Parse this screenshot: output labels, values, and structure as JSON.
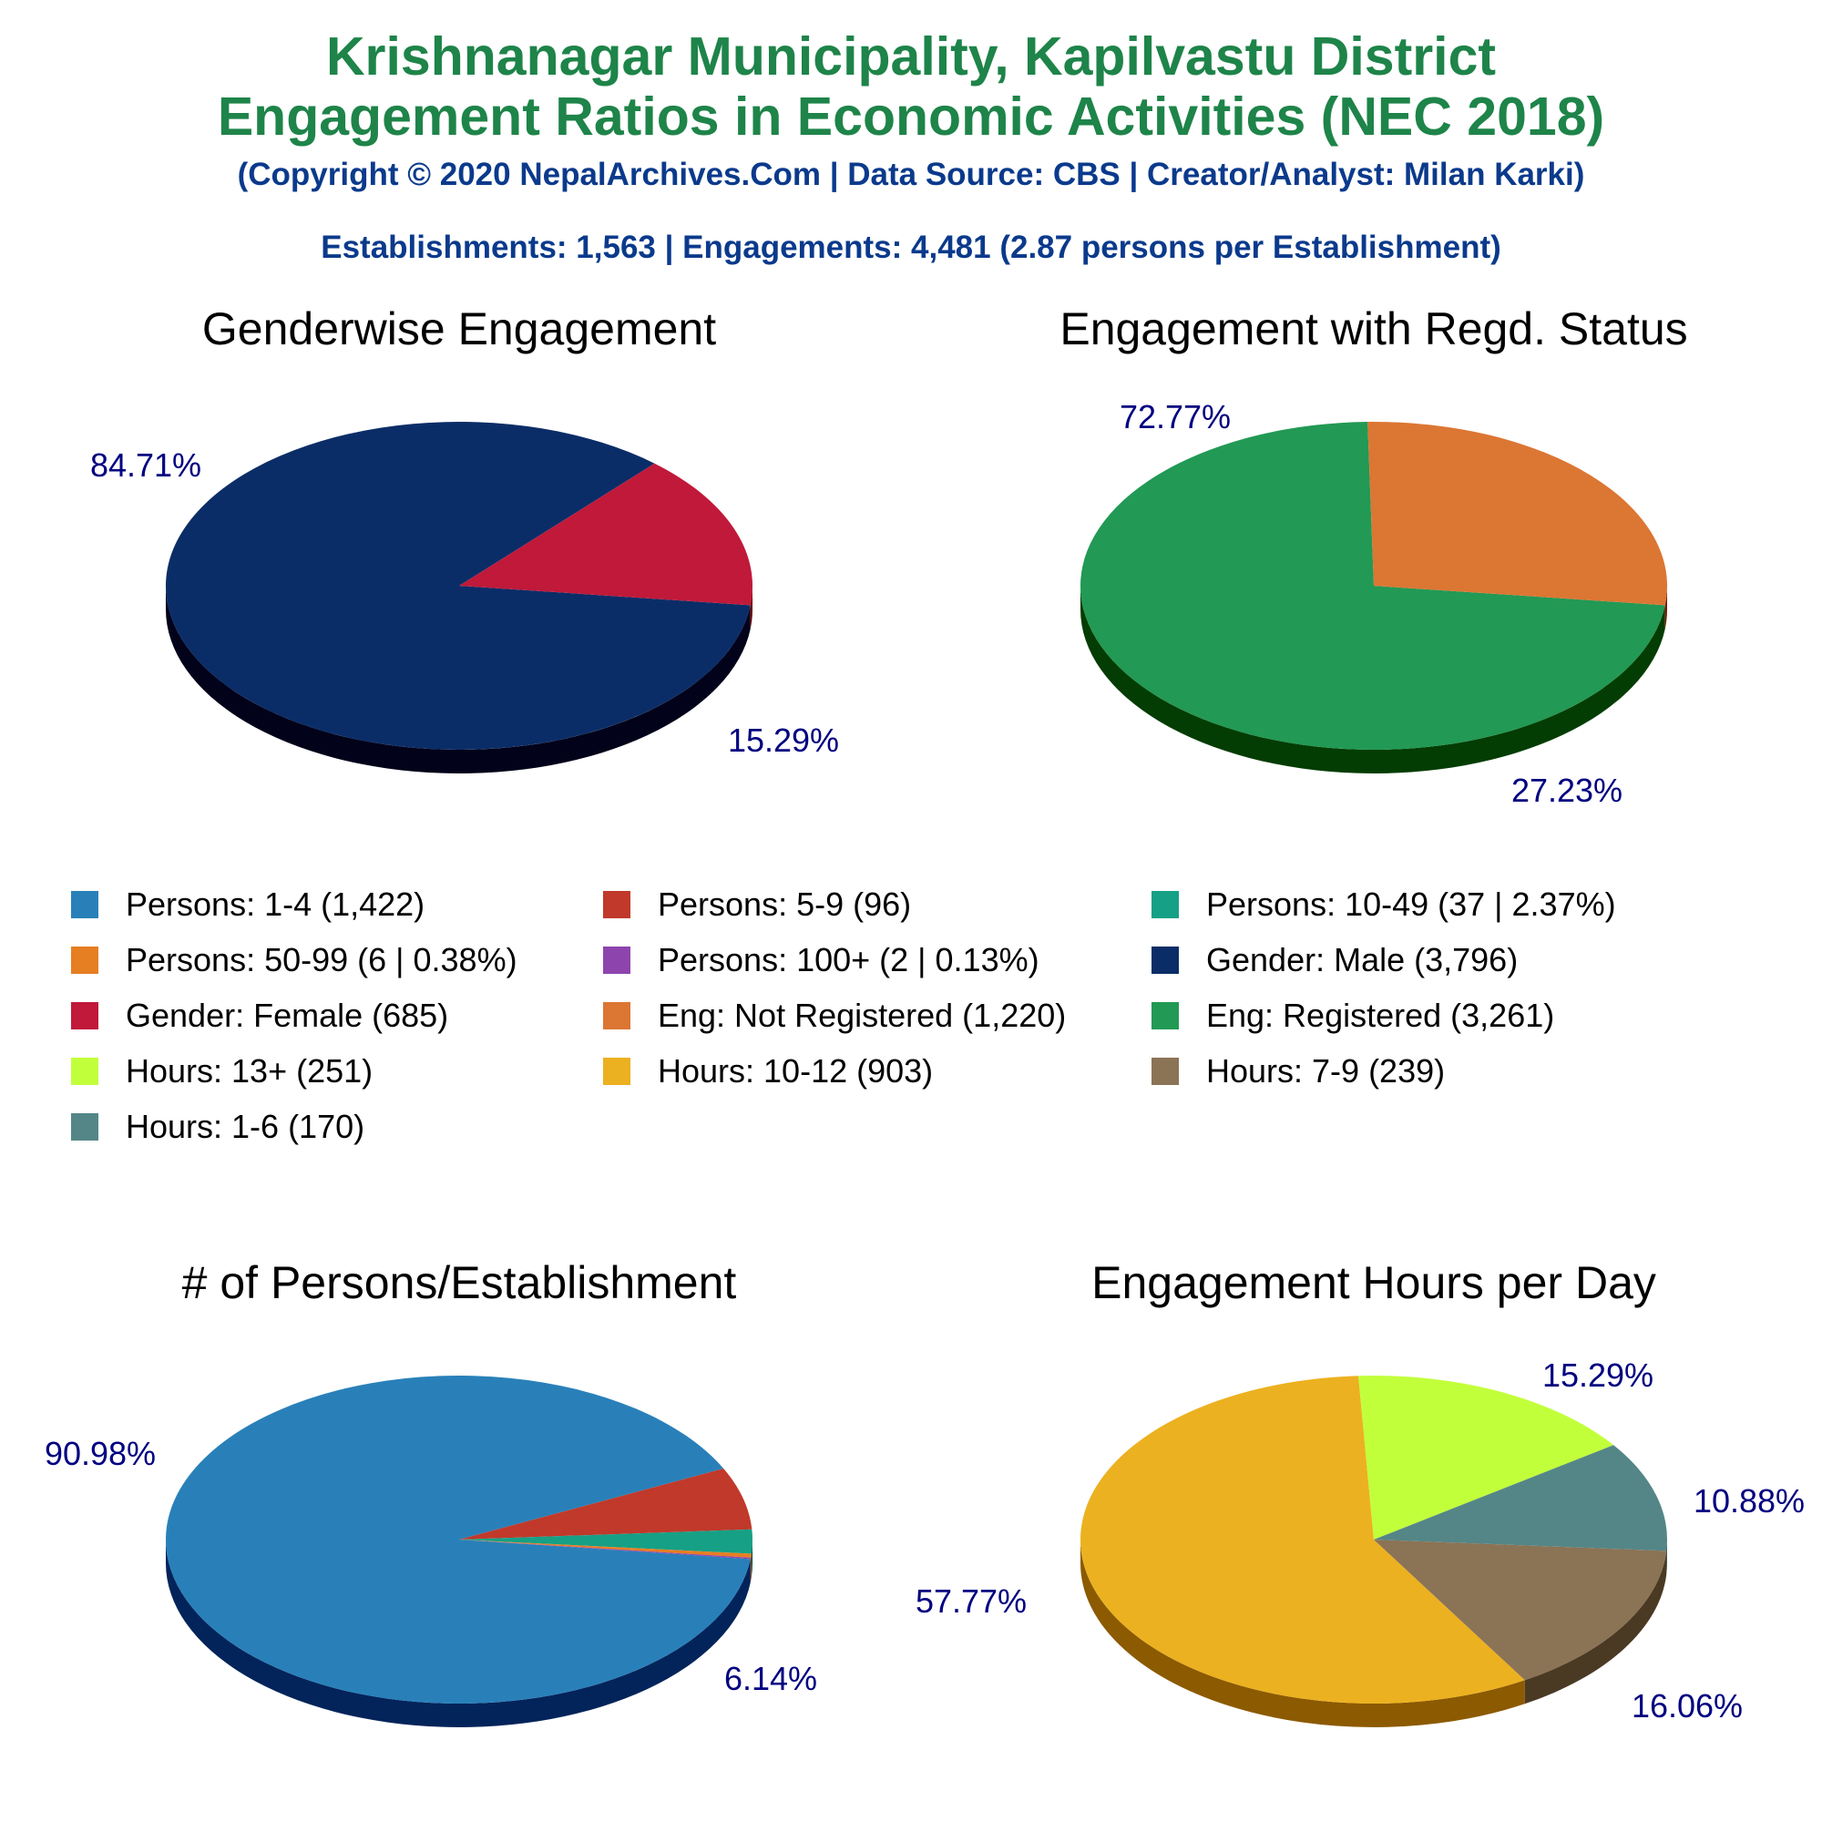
{
  "header": {
    "title_line1": "Krishnanagar Municipality, Kapilvastu District",
    "title_line2": "Engagement Ratios in Economic Activities (NEC 2018)",
    "copyright": "(Copyright © 2020 NepalArchives.Com | Data Source: CBS | Creator/Analyst: Milan Karki)",
    "summary": "Establishments: 1,563 | Engagements: 4,481 (2.87 persons per Establishment)"
  },
  "legend": [
    {
      "label": "Persons: 1-4 (1,422)",
      "color": "#2980b9"
    },
    {
      "label": "Persons: 5-9 (96)",
      "color": "#c0392b"
    },
    {
      "label": "Persons: 10-49 (37 | 2.37%)",
      "color": "#16a085"
    },
    {
      "label": "Persons: 50-99 (6 | 0.38%)",
      "color": "#e67e22"
    },
    {
      "label": "Persons: 100+ (2 | 0.13%)",
      "color": "#8e44ad"
    },
    {
      "label": "Gender: Male (3,796)",
      "color": "#0b2d67"
    },
    {
      "label": "Gender: Female (685)",
      "color": "#c0193a"
    },
    {
      "label": "Eng: Not Registered (1,220)",
      "color": "#dc7633"
    },
    {
      "label": "Eng: Registered (3,261)",
      "color": "#229954"
    },
    {
      "label": "Hours: 13+ (251)",
      "color": "#c2ff3b"
    },
    {
      "label": "Hours: 10-12 (903)",
      "color": "#ecb120"
    },
    {
      "label": "Hours: 7-9 (239)",
      "color": "#8b7355"
    },
    {
      "label": "Hours: 1-6 (170)",
      "color": "#548687"
    }
  ],
  "chart_data": [
    {
      "type": "pie",
      "title": "Genderwise Engagement",
      "categories": [
        "Gender: Male",
        "Gender: Female"
      ],
      "values": [
        3796,
        685
      ],
      "labels": [
        "84.71%",
        "15.29%"
      ],
      "colors": [
        "#0b2d67",
        "#c0193a"
      ],
      "side_colors": [
        "#02021a",
        "#6e0000"
      ]
    },
    {
      "type": "pie",
      "title": "Engagement with Regd. Status",
      "categories": [
        "Eng: Registered",
        "Eng: Not Registered"
      ],
      "values": [
        3261,
        1220
      ],
      "labels": [
        "72.77%",
        "27.23%"
      ],
      "colors": [
        "#229954",
        "#dc7633"
      ],
      "side_colors": [
        "#033d03",
        "#7a1a00"
      ]
    },
    {
      "type": "pie",
      "title": "# of Persons/Establishment",
      "categories": [
        "Persons: 1-4",
        "Persons: 5-9",
        "Persons: 10-49",
        "Persons: 50-99",
        "Persons: 100+"
      ],
      "values": [
        1422,
        96,
        37,
        6,
        2
      ],
      "labels": [
        "90.98%",
        "6.14%",
        "",
        "",
        ""
      ],
      "colors": [
        "#2980b9",
        "#c0392b",
        "#16a085",
        "#e67e22",
        "#8e44ad"
      ],
      "side_colors": [
        "#03245a",
        "#6e0000",
        "#004b33",
        "#7a3a00",
        "#3a0050"
      ]
    },
    {
      "type": "pie",
      "title": "Engagement Hours per Day",
      "categories": [
        "Hours: 10-12",
        "Hours: 13+",
        "Hours: 1-6",
        "Hours: 7-9"
      ],
      "values": [
        903,
        251,
        170,
        239
      ],
      "labels": [
        "57.77%",
        "16.06%",
        "10.88%",
        "15.29%"
      ],
      "colors": [
        "#ecb120",
        "#c2ff3b",
        "#548687",
        "#8b7355"
      ],
      "side_colors": [
        "#8c5a00",
        "#6a9e00",
        "#1f4444",
        "#4a3a24"
      ]
    }
  ]
}
